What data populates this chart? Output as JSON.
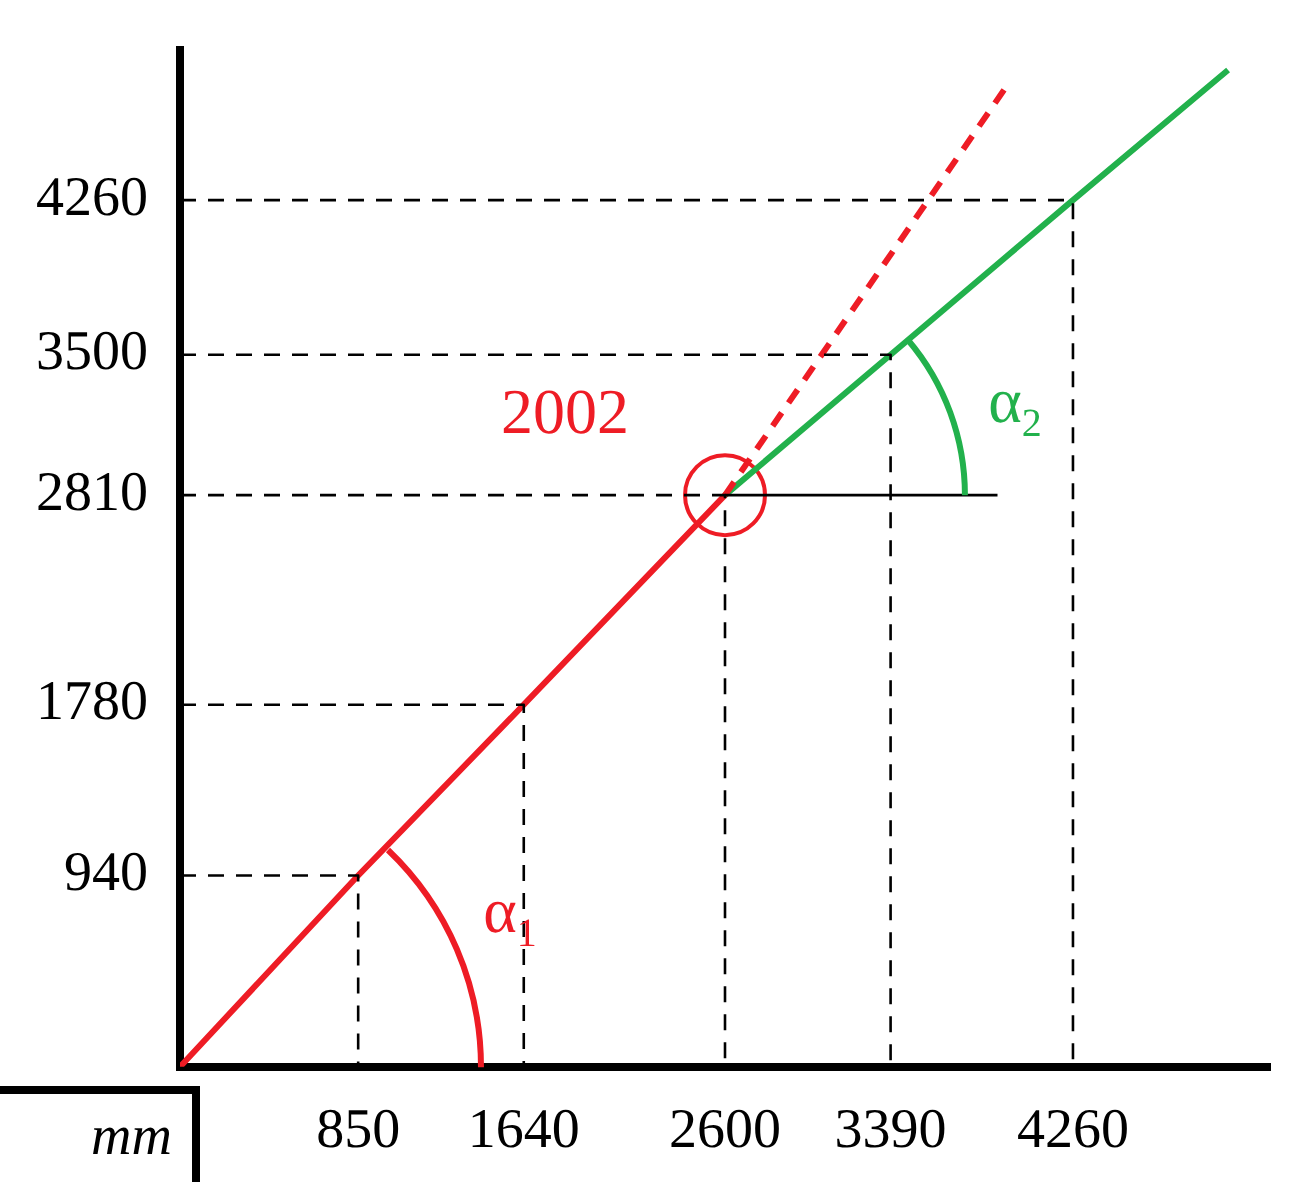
{
  "chart_data": {
    "type": "line",
    "xlim": [
      0,
      5200
    ],
    "ylim": [
      0,
      5000
    ],
    "xticks": [
      850,
      1640,
      2600,
      3390,
      4260
    ],
    "yticks": [
      940,
      1780,
      2810,
      3500,
      4260
    ],
    "grid": false,
    "legend": false,
    "series": [
      {
        "color": "#000000",
        "line_style": "dashed",
        "marker": "none",
        "x": [
          0,
          850,
          850
        ],
        "values": [
          940,
          940,
          0
        ]
      },
      {
        "color": "#000000",
        "line_style": "dashed",
        "marker": "none",
        "x": [
          0,
          1640,
          1640
        ],
        "values": [
          1780,
          1780,
          0
        ]
      },
      {
        "color": "#000000",
        "line_style": "dashed",
        "marker": "none",
        "x": [
          0,
          2600,
          2600
        ],
        "values": [
          2810,
          2810,
          0
        ]
      },
      {
        "color": "#000000",
        "line_style": "dashed",
        "marker": "none",
        "x": [
          0,
          3390,
          3390
        ],
        "values": [
          3500,
          3500,
          0
        ]
      },
      {
        "color": "#000000",
        "line_style": "dashed",
        "marker": "none",
        "x": [
          0,
          4260,
          4260
        ],
        "values": [
          4260,
          4260,
          0
        ]
      },
      {
        "color": "#000000",
        "line_style": "solid",
        "marker": "none",
        "x": [
          2600,
          3900
        ],
        "values": [
          2810,
          2810
        ]
      },
      {
        "color": "#ee1c25",
        "line_style": "solid",
        "marker": "none",
        "x": [
          0,
          850,
          1640,
          2600
        ],
        "values": [
          0,
          940,
          1780,
          2810
        ]
      },
      {
        "color": "#ee1c25",
        "line_style": "dashed",
        "marker": "none",
        "x": [
          2600,
          3950
        ],
        "values": [
          2810,
          4830
        ]
      },
      {
        "color": "#22b14c",
        "line_style": "solid",
        "marker": "none",
        "x": [
          2600,
          3390,
          4260,
          5000
        ],
        "values": [
          2810,
          3500,
          4260,
          4900
        ]
      },
      {
        "type": "scatter",
        "color": "#ee1c25",
        "marker": "circle",
        "x": [
          2600
        ],
        "values": [
          2810
        ]
      }
    ],
    "annotations": [
      "2002",
      "α$_{1}$",
      "α$_{2}$",
      "mm"
    ]
  }
}
